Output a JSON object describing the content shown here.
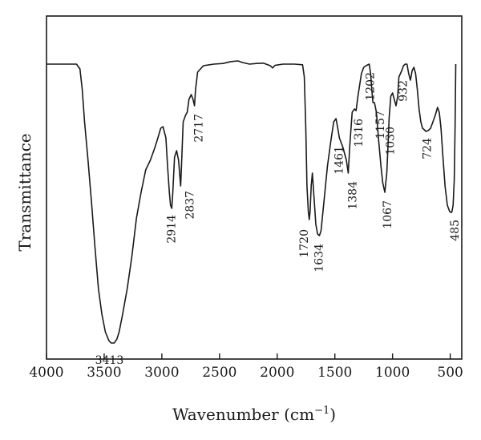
{
  "chart_data": {
    "type": "line",
    "xlabel": "Wavenumber (cm",
    "xlabel_superscript": "−1",
    "xlabel_suffix": ")",
    "ylabel": "Transmittance",
    "xlim": [
      4000,
      400
    ],
    "x_reversed": true,
    "ylim": [
      0,
      100
    ],
    "y_ticks_shown": false,
    "grid": false,
    "line_color": "#1a1a1a",
    "x_ticks": [
      {
        "value": 4000,
        "label": "4000"
      },
      {
        "value": 3500,
        "label": "3500"
      },
      {
        "value": 3000,
        "label": "3000"
      },
      {
        "value": 2500,
        "label": "2500"
      },
      {
        "value": 2000,
        "label": "2000"
      },
      {
        "value": 1500,
        "label": "1500"
      },
      {
        "value": 1000,
        "label": "1000"
      },
      {
        "value": 500,
        "label": "500"
      }
    ],
    "series": [
      {
        "points": [
          [
            4000,
            90
          ],
          [
            3900,
            90
          ],
          [
            3740,
            90
          ],
          [
            3710,
            88.5
          ],
          [
            3690,
            82
          ],
          [
            3670,
            72
          ],
          [
            3640,
            60
          ],
          [
            3610,
            47
          ],
          [
            3580,
            33
          ],
          [
            3550,
            20
          ],
          [
            3520,
            12
          ],
          [
            3490,
            6.5
          ],
          [
            3460,
            3.8
          ],
          [
            3440,
            3
          ],
          [
            3413,
            3
          ],
          [
            3390,
            4.2
          ],
          [
            3370,
            6.5
          ],
          [
            3340,
            12
          ],
          [
            3300,
            20
          ],
          [
            3260,
            30
          ],
          [
            3220,
            42
          ],
          [
            3180,
            50
          ],
          [
            3140,
            57
          ],
          [
            3100,
            60
          ],
          [
            3060,
            64
          ],
          [
            3030,
            67.5
          ],
          [
            3010,
            70
          ],
          [
            2990,
            70.5
          ],
          [
            2965,
            67
          ],
          [
            2950,
            58
          ],
          [
            2935,
            50
          ],
          [
            2925,
            46
          ],
          [
            2914,
            45
          ],
          [
            2905,
            50
          ],
          [
            2890,
            61
          ],
          [
            2872,
            63
          ],
          [
            2855,
            60
          ],
          [
            2837,
            52
          ],
          [
            2830,
            58
          ],
          [
            2815,
            72
          ],
          [
            2795,
            74
          ],
          [
            2780,
            75
          ],
          [
            2765,
            79
          ],
          [
            2745,
            80.5
          ],
          [
            2730,
            79
          ],
          [
            2717,
            77
          ],
          [
            2708,
            82
          ],
          [
            2690,
            87.5
          ],
          [
            2640,
            89.5
          ],
          [
            2550,
            90
          ],
          [
            2470,
            90.2
          ],
          [
            2400,
            90.8
          ],
          [
            2340,
            91
          ],
          [
            2300,
            90.5
          ],
          [
            2240,
            90
          ],
          [
            2180,
            90.2
          ],
          [
            2120,
            90.3
          ],
          [
            2060,
            89.5
          ],
          [
            2040,
            88.8
          ],
          [
            2020,
            89.6
          ],
          [
            1950,
            90
          ],
          [
            1850,
            90
          ],
          [
            1780,
            89.8
          ],
          [
            1765,
            86
          ],
          [
            1752,
            70
          ],
          [
            1742,
            52
          ],
          [
            1730,
            44
          ],
          [
            1722,
            41.5
          ],
          [
            1715,
            44
          ],
          [
            1705,
            52
          ],
          [
            1695,
            56
          ],
          [
            1680,
            48
          ],
          [
            1665,
            40
          ],
          [
            1650,
            37
          ],
          [
            1634,
            36.5
          ],
          [
            1620,
            38
          ],
          [
            1595,
            47
          ],
          [
            1565,
            58
          ],
          [
            1535,
            66
          ],
          [
            1510,
            72
          ],
          [
            1490,
            73
          ],
          [
            1475,
            70
          ],
          [
            1461,
            67
          ],
          [
            1430,
            64
          ],
          [
            1400,
            60
          ],
          [
            1384,
            56
          ],
          [
            1370,
            65
          ],
          [
            1350,
            75
          ],
          [
            1330,
            76
          ],
          [
            1316,
            75.5
          ],
          [
            1300,
            80
          ],
          [
            1270,
            87
          ],
          [
            1250,
            89
          ],
          [
            1230,
            89.5
          ],
          [
            1202,
            90
          ],
          [
            1190,
            87
          ],
          [
            1180,
            82
          ],
          [
            1170,
            78
          ],
          [
            1157,
            78
          ],
          [
            1140,
            75
          ],
          [
            1120,
            66
          ],
          [
            1100,
            58
          ],
          [
            1085,
            53
          ],
          [
            1067,
            50
          ],
          [
            1050,
            56
          ],
          [
            1040,
            64
          ],
          [
            1030,
            73
          ],
          [
            1015,
            80
          ],
          [
            1000,
            81
          ],
          [
            985,
            79
          ],
          [
            970,
            77
          ],
          [
            955,
            80
          ],
          [
            945,
            86
          ],
          [
            932,
            87
          ],
          [
            920,
            88
          ],
          [
            905,
            89.5
          ],
          [
            890,
            90
          ],
          [
            875,
            90
          ],
          [
            860,
            87
          ],
          [
            845,
            85
          ],
          [
            830,
            88
          ],
          [
            815,
            89
          ],
          [
            800,
            87
          ],
          [
            785,
            82
          ],
          [
            770,
            76
          ],
          [
            755,
            72
          ],
          [
            740,
            70
          ],
          [
            724,
            69.5
          ],
          [
            710,
            69
          ],
          [
            690,
            69.3
          ],
          [
            670,
            70
          ],
          [
            650,
            72
          ],
          [
            630,
            74
          ],
          [
            610,
            76.5
          ],
          [
            595,
            75
          ],
          [
            580,
            70
          ],
          [
            565,
            62
          ],
          [
            545,
            52
          ],
          [
            525,
            46
          ],
          [
            505,
            44
          ],
          [
            490,
            43.7
          ],
          [
            485,
            44
          ],
          [
            475,
            46
          ],
          [
            465,
            54
          ],
          [
            458,
            70
          ],
          [
            452,
            90
          ]
        ]
      }
    ],
    "annotations": [
      {
        "label": "3413",
        "wn": 3413,
        "t": 3,
        "dx": -6,
        "dy": 18,
        "rotate": false
      },
      {
        "label": "2914",
        "wn": 2914,
        "t": 45,
        "dx": 0,
        "dy": 8,
        "rotate": true,
        "anchor": "end"
      },
      {
        "label": "2837",
        "wn": 2837,
        "t": 52,
        "dx": 12,
        "dy": 6,
        "rotate": true,
        "anchor": "end"
      },
      {
        "label": "2717",
        "wn": 2717,
        "t": 77,
        "dx": 6,
        "dy": 10,
        "rotate": true,
        "anchor": "end"
      },
      {
        "label": "1720",
        "wn": 1720,
        "t": 41.5,
        "dx": -6,
        "dy": 12,
        "rotate": true,
        "anchor": "end"
      },
      {
        "label": "1634",
        "wn": 1634,
        "t": 36.5,
        "dx": 0,
        "dy": 10,
        "rotate": true,
        "anchor": "end"
      },
      {
        "label": "1461",
        "wn": 1461,
        "t": 67,
        "dx": 0,
        "dy": 10,
        "rotate": true,
        "anchor": "end"
      },
      {
        "label": "1384",
        "wn": 1384,
        "t": 56,
        "dx": 6,
        "dy": 10,
        "rotate": true,
        "anchor": "end"
      },
      {
        "label": "1316",
        "wn": 1316,
        "t": 75.5,
        "dx": 4,
        "dy": 10,
        "rotate": true,
        "anchor": "end"
      },
      {
        "label": "1202",
        "wn": 1202,
        "t": 90,
        "dx": 2,
        "dy": 10,
        "rotate": true,
        "anchor": "end"
      },
      {
        "label": "1157",
        "wn": 1157,
        "t": 78,
        "dx": 8,
        "dy": 10,
        "rotate": true,
        "anchor": "end"
      },
      {
        "label": "1067",
        "wn": 1067,
        "t": 50,
        "dx": 4,
        "dy": 10,
        "rotate": true,
        "anchor": "end"
      },
      {
        "label": "1030",
        "wn": 1030,
        "t": 73,
        "dx": 2,
        "dy": 10,
        "rotate": true,
        "anchor": "end"
      },
      {
        "label": "932",
        "wn": 932,
        "t": 87,
        "dx": 4,
        "dy": 8,
        "rotate": true,
        "anchor": "end"
      },
      {
        "label": "724",
        "wn": 724,
        "t": 69.5,
        "dx": 4,
        "dy": 10,
        "rotate": true,
        "anchor": "end"
      },
      {
        "label": "485",
        "wn": 485,
        "t": 44,
        "dx": 4,
        "dy": 10,
        "rotate": true,
        "anchor": "end"
      }
    ]
  }
}
